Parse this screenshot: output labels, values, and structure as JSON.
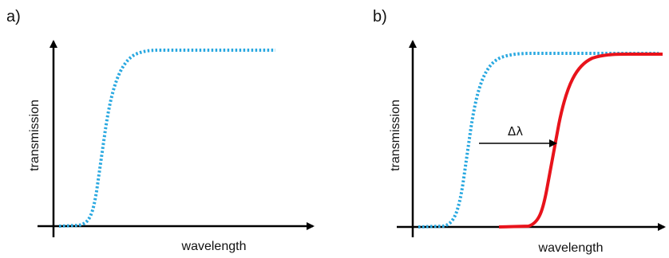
{
  "panels": [
    {
      "id": "a",
      "label": "a)",
      "xlabel": "wavelength",
      "ylabel": "transmission"
    },
    {
      "id": "b",
      "label": "b)",
      "xlabel": "wavelength",
      "ylabel": "transmission",
      "annotation": "Δλ"
    }
  ],
  "colors": {
    "original_curve": "#29a8e0",
    "shifted_curve": "#e8131b",
    "axis": "#000000"
  }
}
